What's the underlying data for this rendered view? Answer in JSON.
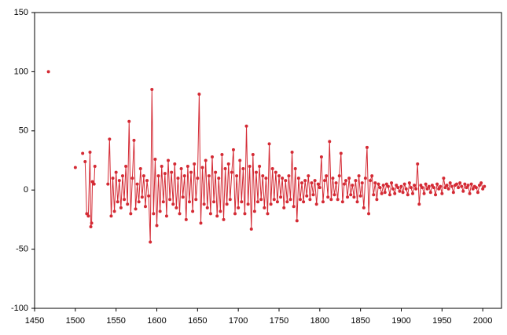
{
  "chart_data": {
    "type": "line",
    "x": [
      1467,
      1480,
      1500,
      1505,
      1509,
      1511,
      1512,
      1514,
      1516,
      1518,
      1519,
      1520,
      1521,
      1523,
      1524,
      1530,
      1540,
      1542,
      1544,
      1546,
      1548,
      1550,
      1552,
      1554,
      1556,
      1558,
      1560,
      1562,
      1564,
      1566,
      1568,
      1570,
      1572,
      1574,
      1576,
      1578,
      1580,
      1582,
      1584,
      1586,
      1588,
      1590,
      1592,
      1594,
      1596,
      1598,
      1600,
      1602,
      1604,
      1606,
      1608,
      1610,
      1612,
      1614,
      1616,
      1618,
      1620,
      1622,
      1624,
      1626,
      1628,
      1630,
      1632,
      1634,
      1636,
      1638,
      1640,
      1642,
      1644,
      1646,
      1648,
      1650,
      1652,
      1654,
      1656,
      1658,
      1660,
      1662,
      1664,
      1666,
      1668,
      1670,
      1672,
      1674,
      1676,
      1678,
      1680,
      1682,
      1684,
      1686,
      1688,
      1690,
      1692,
      1694,
      1696,
      1698,
      1700,
      1702,
      1704,
      1706,
      1708,
      1710,
      1712,
      1714,
      1716,
      1718,
      1720,
      1722,
      1724,
      1726,
      1728,
      1730,
      1732,
      1734,
      1736,
      1738,
      1740,
      1742,
      1744,
      1746,
      1748,
      1750,
      1752,
      1754,
      1756,
      1758,
      1760,
      1762,
      1764,
      1766,
      1768,
      1770,
      1772,
      1774,
      1776,
      1778,
      1780,
      1782,
      1784,
      1786,
      1788,
      1790,
      1792,
      1794,
      1796,
      1798,
      1800,
      1802,
      1804,
      1806,
      1808,
      1810,
      1812,
      1814,
      1816,
      1818,
      1820,
      1822,
      1824,
      1826,
      1828,
      1830,
      1832,
      1834,
      1836,
      1838,
      1840,
      1842,
      1844,
      1846,
      1848,
      1850,
      1852,
      1854,
      1856,
      1858,
      1860,
      1862,
      1864,
      1866,
      1868,
      1870,
      1872,
      1874,
      1876,
      1878,
      1880,
      1882,
      1884,
      1886,
      1888,
      1890,
      1892,
      1894,
      1896,
      1898,
      1900,
      1902,
      1904,
      1906,
      1908,
      1910,
      1912,
      1914,
      1916,
      1918,
      1920,
      1922,
      1924,
      1926,
      1928,
      1930,
      1932,
      1934,
      1936,
      1938,
      1940,
      1942,
      1944,
      1946,
      1948,
      1950,
      1952,
      1954,
      1956,
      1958,
      1960,
      1962,
      1964,
      1966,
      1968,
      1970,
      1972,
      1974,
      1976,
      1978,
      1980,
      1982,
      1984,
      1986,
      1988,
      1990,
      1992,
      1994,
      1996,
      1998,
      2000,
      2002
    ],
    "series": [
      {
        "color": "#d42a34",
        "values": [
          100,
          null,
          19,
          null,
          31,
          null,
          24,
          -20,
          -22,
          32,
          -31,
          -28,
          7,
          5,
          20,
          null,
          5,
          43,
          -22,
          10,
          -18,
          15,
          -10,
          8,
          -15,
          12,
          -8,
          20,
          -12,
          58,
          -20,
          10,
          42,
          -16,
          5,
          -10,
          18,
          -6,
          12,
          -14,
          8,
          -5,
          -44,
          85,
          -20,
          26,
          -30,
          12,
          -18,
          20,
          -10,
          14,
          -22,
          25,
          -8,
          15,
          -12,
          22,
          -15,
          10,
          -20,
          18,
          -6,
          12,
          -25,
          20,
          -10,
          15,
          -18,
          22,
          -8,
          10,
          81,
          -28,
          19,
          -12,
          25,
          -15,
          12,
          -20,
          28,
          -10,
          15,
          -22,
          10,
          -18,
          30,
          -25,
          18,
          -12,
          22,
          -8,
          15,
          34,
          -20,
          12,
          -15,
          25,
          -10,
          18,
          -20,
          54,
          -12,
          20,
          -33,
          30,
          -18,
          15,
          -10,
          20,
          -8,
          12,
          -15,
          10,
          -20,
          39,
          -12,
          18,
          -8,
          15,
          -10,
          12,
          -6,
          10,
          -15,
          8,
          -10,
          12,
          -8,
          32,
          -14,
          18,
          -26,
          10,
          -8,
          6,
          -10,
          8,
          -5,
          12,
          -8,
          6,
          -4,
          8,
          -12,
          5,
          2,
          28,
          -10,
          8,
          12,
          -6,
          41,
          -8,
          10,
          -4,
          6,
          -8,
          12,
          31,
          -10,
          5,
          8,
          -6,
          10,
          -4,
          4,
          -6,
          8,
          -10,
          12,
          -5,
          6,
          -15,
          10,
          36,
          -20,
          8,
          12,
          -4,
          6,
          -8,
          5,
          2,
          -3,
          4,
          -2,
          5,
          3,
          -4,
          6,
          1,
          -3,
          4,
          2,
          -1,
          3,
          -2,
          5,
          1,
          -4,
          6,
          2,
          -3,
          4,
          1,
          22,
          -12,
          4,
          2,
          -3,
          5,
          1,
          3,
          -2,
          4,
          2,
          -4,
          5,
          1,
          3,
          -3,
          10,
          2,
          4,
          1,
          6,
          3,
          -2,
          4,
          5,
          2,
          6,
          3,
          -1,
          5,
          2,
          4,
          -3,
          5,
          1,
          3,
          2,
          -2,
          4,
          6,
          1,
          3
        ]
      }
    ],
    "xlim": [
      1450,
      2023
    ],
    "xticks": [
      1450,
      1500,
      1550,
      1600,
      1650,
      1700,
      1750,
      1800,
      1850,
      1900,
      1950,
      2000
    ],
    "ylim": [
      -100,
      150
    ],
    "yticks": [
      -100,
      -50,
      0,
      50,
      100,
      150
    ],
    "grid": false
  }
}
